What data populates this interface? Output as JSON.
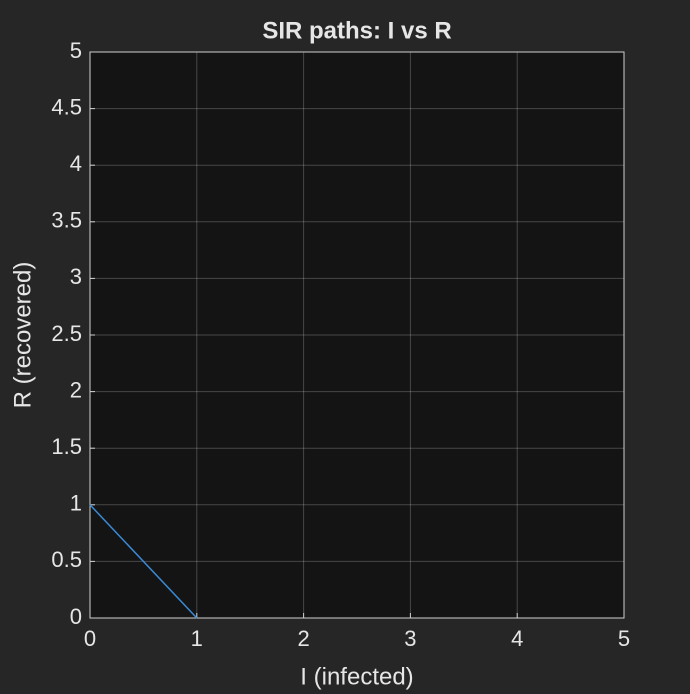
{
  "chart_data": {
    "type": "line",
    "title": "SIR paths: I vs R",
    "xlabel": "I (infected)",
    "ylabel": "R (recovered)",
    "x": [
      0,
      1
    ],
    "series": [
      {
        "color": "#3a8ad6",
        "values": [
          1,
          0
        ]
      }
    ],
    "xlim": [
      0,
      5
    ],
    "xticks": [
      0,
      1,
      2,
      3,
      4,
      5
    ],
    "ylim": [
      0,
      5
    ],
    "yticks": [
      0,
      0.5,
      1,
      1.5,
      2,
      2.5,
      3,
      3.5,
      4,
      4.5,
      5
    ],
    "grid": true
  }
}
